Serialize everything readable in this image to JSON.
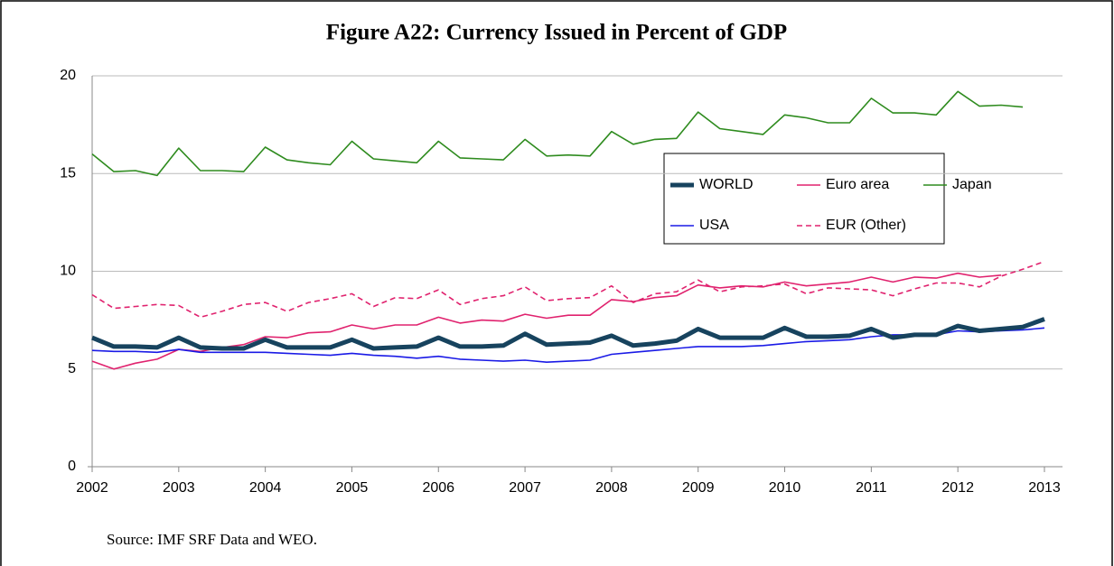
{
  "chart_data": {
    "type": "line",
    "title": "Figure A22: Currency Issued in Percent of GDP",
    "source": "Source: IMF SRF Data and WEO.",
    "x": [
      2002,
      2002.25,
      2002.5,
      2002.75,
      2003,
      2003.25,
      2003.5,
      2003.75,
      2004,
      2004.25,
      2004.5,
      2004.75,
      2005,
      2005.25,
      2005.5,
      2005.75,
      2006,
      2006.25,
      2006.5,
      2006.75,
      2007,
      2007.25,
      2007.5,
      2007.75,
      2008,
      2008.25,
      2008.5,
      2008.75,
      2009,
      2009.25,
      2009.5,
      2009.75,
      2010,
      2010.25,
      2010.5,
      2010.75,
      2011,
      2011.25,
      2011.5,
      2011.75,
      2012,
      2012.25,
      2012.5,
      2012.75,
      2013
    ],
    "xlim": [
      2002,
      2013
    ],
    "xticks": [
      2002,
      2003,
      2004,
      2005,
      2006,
      2007,
      2008,
      2009,
      2010,
      2011,
      2012,
      2013
    ],
    "ylim": [
      0,
      20
    ],
    "yticks": [
      0,
      5,
      10,
      15,
      20
    ],
    "grid": true,
    "series": [
      {
        "name": "WORLD",
        "color": "#17435e",
        "width": 5,
        "dashed": false,
        "values": [
          6.6,
          6.15,
          6.15,
          6.1,
          6.6,
          6.1,
          6.05,
          6.05,
          6.5,
          6.1,
          6.1,
          6.1,
          6.5,
          6.05,
          6.1,
          6.15,
          6.6,
          6.15,
          6.15,
          6.2,
          6.8,
          6.25,
          6.3,
          6.35,
          6.7,
          6.2,
          6.3,
          6.45,
          7.05,
          6.6,
          6.6,
          6.6,
          7.1,
          6.65,
          6.65,
          6.7,
          7.05,
          6.6,
          6.75,
          6.75,
          7.2,
          6.95,
          7.05,
          7.15,
          7.55
        ]
      },
      {
        "name": "Euro area",
        "color": "#e0226e",
        "width": 1.6,
        "dashed": false,
        "values": [
          5.4,
          5.0,
          5.3,
          5.5,
          6.0,
          5.9,
          6.1,
          6.25,
          6.65,
          6.6,
          6.85,
          6.9,
          7.25,
          7.05,
          7.25,
          7.25,
          7.65,
          7.35,
          7.5,
          7.45,
          7.8,
          7.6,
          7.75,
          7.75,
          8.55,
          8.45,
          8.65,
          8.75,
          9.3,
          9.15,
          9.25,
          9.2,
          9.45,
          9.25,
          9.35,
          9.45,
          9.7,
          9.45,
          9.7,
          9.65,
          9.9,
          9.7,
          9.8,
          null,
          null
        ]
      },
      {
        "name": "Japan",
        "color": "#2e8b1e",
        "width": 1.6,
        "dashed": false,
        "values": [
          16.0,
          15.1,
          15.15,
          14.9,
          16.3,
          15.15,
          15.15,
          15.1,
          16.35,
          15.7,
          15.55,
          15.45,
          16.65,
          15.75,
          15.65,
          15.55,
          16.65,
          15.8,
          15.75,
          15.7,
          16.75,
          15.9,
          15.95,
          15.9,
          17.15,
          16.5,
          16.75,
          16.8,
          18.15,
          17.3,
          17.15,
          17.0,
          18.0,
          17.85,
          17.6,
          17.6,
          18.85,
          18.1,
          18.1,
          18.0,
          19.2,
          18.45,
          18.5,
          18.4,
          null
        ]
      },
      {
        "name": "USA",
        "color": "#1a1ae6",
        "width": 1.6,
        "dashed": false,
        "values": [
          5.95,
          5.9,
          5.9,
          5.85,
          6.0,
          5.85,
          5.85,
          5.85,
          5.85,
          5.8,
          5.75,
          5.7,
          5.8,
          5.7,
          5.65,
          5.55,
          5.65,
          5.5,
          5.45,
          5.4,
          5.45,
          5.35,
          5.4,
          5.45,
          5.75,
          5.85,
          5.95,
          6.05,
          6.15,
          6.15,
          6.15,
          6.2,
          6.3,
          6.4,
          6.45,
          6.5,
          6.65,
          6.75,
          6.75,
          6.75,
          6.95,
          6.9,
          6.95,
          7.0,
          7.1
        ]
      },
      {
        "name": "EUR (Other)",
        "color": "#e0226e",
        "width": 1.6,
        "dashed": true,
        "values": [
          8.8,
          8.1,
          8.2,
          8.3,
          8.25,
          7.65,
          7.95,
          8.3,
          8.4,
          7.95,
          8.4,
          8.6,
          8.85,
          8.2,
          8.65,
          8.6,
          9.05,
          8.3,
          8.6,
          8.75,
          9.2,
          8.5,
          8.6,
          8.65,
          9.25,
          8.4,
          8.85,
          8.95,
          9.55,
          8.95,
          9.2,
          9.25,
          9.35,
          8.85,
          9.15,
          9.1,
          9.05,
          8.75,
          9.1,
          9.4,
          9.4,
          9.2,
          9.75,
          10.1,
          10.5
        ]
      }
    ]
  }
}
